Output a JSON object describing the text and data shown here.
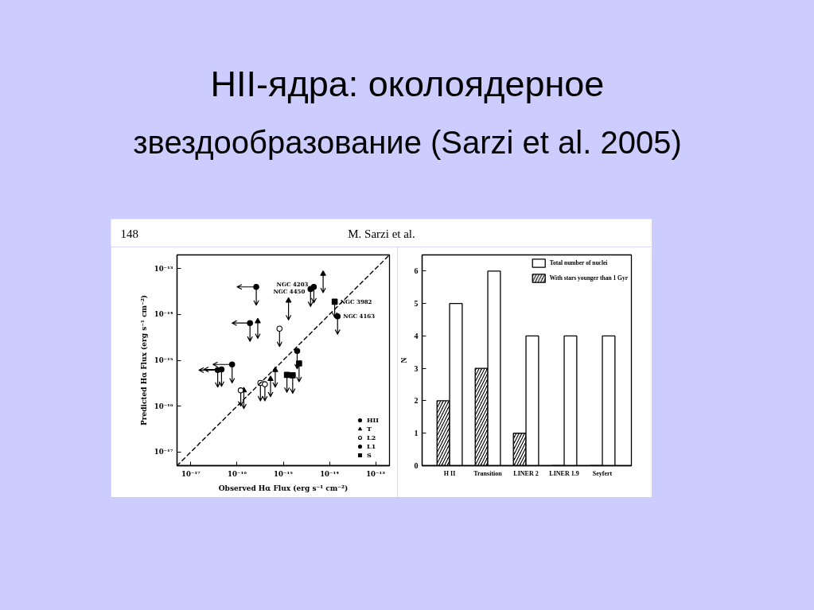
{
  "chart_data": [
    {
      "type": "scatter",
      "title": "HII-ядра: околоядерное",
      "subtitle": "звездообразование (Sarzi et al. 2005)",
      "annotations": [
        "148",
        "M. Sarzi et al.",
        {
          "text": "NGC 4203",
          "x": 4.6e-15,
          "y": 4e-14
        },
        {
          "text": "NGC 4450",
          "x": 3.9e-15,
          "y": 3.6e-14
        },
        {
          "text": "NGC 3982",
          "x": 1.3e-14,
          "y": 1.9e-14
        },
        {
          "text": "NGC 4163",
          "x": 1.5e-14,
          "y": 9.1e-15
        }
      ],
      "xlabel": "Observed Hα Flux (erg s⁻¹ cm⁻²)",
      "ylabel": "Predicted Hα Flux (erg s⁻¹ cm⁻²)",
      "log": "xy",
      "xlim": [
        5e-18,
        2e-13
      ],
      "ylim": [
        5e-18,
        2e-13
      ],
      "xticks": [
        {
          "value": 1e-17,
          "label": "10⁻¹⁷"
        },
        {
          "value": 1e-16,
          "label": "10⁻¹⁶"
        },
        {
          "value": 1e-15,
          "label": "10⁻¹⁵"
        },
        {
          "value": 1e-14,
          "label": "10⁻¹⁴"
        },
        {
          "value": 1e-13,
          "label": "10⁻¹³"
        }
      ],
      "yticks": [
        {
          "value": 1e-17,
          "label": "10⁻¹⁷"
        },
        {
          "value": 1e-16,
          "label": "10⁻¹⁶"
        },
        {
          "value": 1e-15,
          "label": "10⁻¹⁵"
        },
        {
          "value": 1e-14,
          "label": "10⁻¹⁴"
        },
        {
          "value": 1e-13,
          "label": "10⁻¹³"
        }
      ],
      "grid": false,
      "legend": "bottom right",
      "series": [
        {
          "name": "HII",
          "color": "#000000",
          "marker": "circle",
          "x": [
            2.6e-16,
            1.9e-16,
            3.8e-17,
            4.6e-17,
            7.8e-17
          ],
          "values": [
            4e-14,
            6.5e-15,
            6.1e-16,
            6.3e-16,
            8.1e-16
          ],
          "errors": [
            [
              1.6e-14,
              4e-14
            ],
            [
              2.6e-15,
              6.5e-15
            ],
            [
              2.6e-16,
              6.1e-16
            ],
            [
              2.7e-16,
              6.3e-16
            ],
            [
              3.2e-16,
              8.1e-16
            ]
          ],
          "xerrors": [
            [
              1e-16,
              2.6e-16
            ],
            [
              7.8e-17,
              1.9e-16
            ],
            [
              1.5e-17,
              3.8e-17
            ],
            [
              1.9e-17,
              4.6e-17
            ],
            [
              3e-17,
              7.8e-17
            ]
          ]
        },
        {
          "name": "T",
          "color": "#000000",
          "marker": "triangle",
          "x": [
            1.3e-15,
            7.3e-15,
            2.8e-16,
            1.4e-16,
            5.3e-16,
            6.7e-16
          ],
          "values": [
            2e-14,
            7.7e-14,
            7.1e-15,
            2.2e-16,
            3.9e-16,
            6.1e-16
          ],
          "errors": [
            [
              7.6e-15,
              2e-14
            ],
            [
              3e-14,
              7.7e-14
            ],
            [
              3e-15,
              7.1e-15
            ],
            [
              8.8e-17,
              2.2e-16
            ],
            [
              1.6e-16,
              3.9e-16
            ],
            [
              2.6e-16,
              6.1e-16
            ]
          ]
        },
        {
          "name": "L2",
          "color": "#ffffff",
          "marker": "circle",
          "x": [
            8.3e-16,
            1.2e-16,
            3.2e-16,
            4e-16
          ],
          "values": [
            4.9e-15,
            2.2e-16,
            3.2e-16,
            3e-16
          ],
          "errors": [
            [
              2e-15,
              4.9e-15
            ],
            [
              1e-16,
              2.2e-16
            ],
            [
              1.3e-16,
              3.2e-16
            ],
            [
              1.3e-16,
              3e-16
            ]
          ]
        },
        {
          "name": "L1",
          "color": "#000000",
          "marker": "circle",
          "x": [
            3.9e-15,
            4.6e-15,
            1.5e-14,
            2e-15
          ],
          "values": [
            3.6e-14,
            4e-14,
            9.1e-15,
            1.6e-15
          ],
          "errors": [
            [
              1.5e-14,
              3.6e-14
            ],
            [
              1.8e-14,
              4e-14
            ],
            [
              3.7e-15,
              9.1e-15
            ],
            [
              6.5e-16,
              1.6e-15
            ]
          ]
        },
        {
          "name": "S",
          "color": "#000000",
          "marker": "square",
          "x": [
            1.3e-14,
            1.2e-15,
            1.6e-15,
            2.2e-15
          ],
          "values": [
            1.9e-14,
            4.8e-16,
            4.7e-16,
            8.5e-16
          ],
          "errors": [
            [
              8.7e-15,
              1.9e-14
            ],
            [
              2e-16,
              4.8e-16
            ],
            [
              1.9e-16,
              4.7e-16
            ],
            [
              3.4e-16,
              8.5e-16
            ]
          ]
        },
        {
          "type": "line",
          "color": "#000000",
          "line_style": "dashed",
          "x": [
            5e-18,
            2e-13
          ],
          "values": [
            5e-18,
            2e-13
          ]
        }
      ]
    },
    {
      "type": "bar",
      "categories": [
        "H II",
        "Transition",
        "LINER 2",
        "LINER 1.9",
        "Seyfert"
      ],
      "ylabel": "N",
      "ylim": [
        0,
        6.5
      ],
      "yticks": [
        0,
        1,
        2,
        3,
        4,
        5,
        6
      ],
      "grid": false,
      "legend": "top right",
      "series": [
        {
          "name": "With stars younger than 1 Gyr",
          "color": "#000000",
          "values": [
            2,
            3,
            1,
            0,
            0
          ]
        },
        {
          "name": "Total number of nuclei",
          "color": "#ffffff",
          "values": [
            5,
            6,
            4,
            4,
            4
          ]
        }
      ]
    }
  ]
}
